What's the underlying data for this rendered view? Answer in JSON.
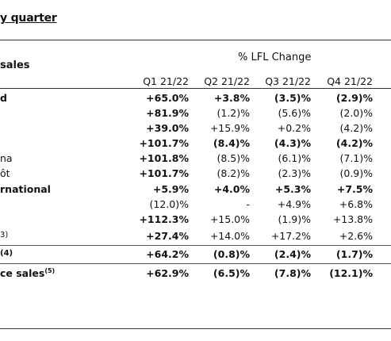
{
  "title": "y quarter",
  "header": {
    "row_label": "sales",
    "group_label": "% LFL Change",
    "columns": [
      "Q1 21/22",
      "Q2 21/22",
      "Q3 21/22",
      "Q4 21/22"
    ]
  },
  "rows": [
    {
      "label": "d",
      "values": [
        "+65.0%",
        "+3.8%",
        "(3.5)%",
        "(2.9)%"
      ]
    },
    {
      "label": "",
      "values": [
        "+81.9%",
        "(1.2)%",
        "(5.6)%",
        "(2.0)%"
      ]
    },
    {
      "label": "",
      "values": [
        "+39.0%",
        "+15.9%",
        "+0.2%",
        "(4.2)%"
      ]
    },
    {
      "label": "",
      "values": [
        "+101.7%",
        "(8.4)%",
        "(4.3)%",
        "(4.2)%"
      ]
    },
    {
      "label": "na",
      "values": [
        "+101.8%",
        "(8.5)%",
        "(6.1)%",
        "(7.1)%"
      ]
    },
    {
      "label": "ôt",
      "values": [
        "+101.7%",
        "(8.2)%",
        "(2.3)%",
        "(0.9)%"
      ]
    },
    {
      "label": "rnational",
      "values": [
        "+5.9%",
        "+4.0%",
        "+5.3%",
        "+7.5%"
      ]
    },
    {
      "label": "",
      "values": [
        "(12.0)%",
        "-",
        "+4.9%",
        "+6.8%"
      ]
    },
    {
      "label": "",
      "values": [
        "+112.3%",
        "+15.0%",
        "(1.9)%",
        "+13.8%"
      ]
    },
    {
      "label": "3)",
      "values": [
        "+27.4%",
        "+14.0%",
        "+17.2%",
        "+2.6%"
      ]
    },
    {
      "label": "(4)",
      "values": [
        "+64.2%",
        "(0.8)%",
        "(2.4)%",
        "(1.7)%"
      ]
    },
    {
      "label": "ce sales",
      "label_sup": "(5)",
      "values": [
        "+62.9%",
        "(6.5)%",
        "(7.8)%",
        "(12.1)%"
      ]
    }
  ]
}
